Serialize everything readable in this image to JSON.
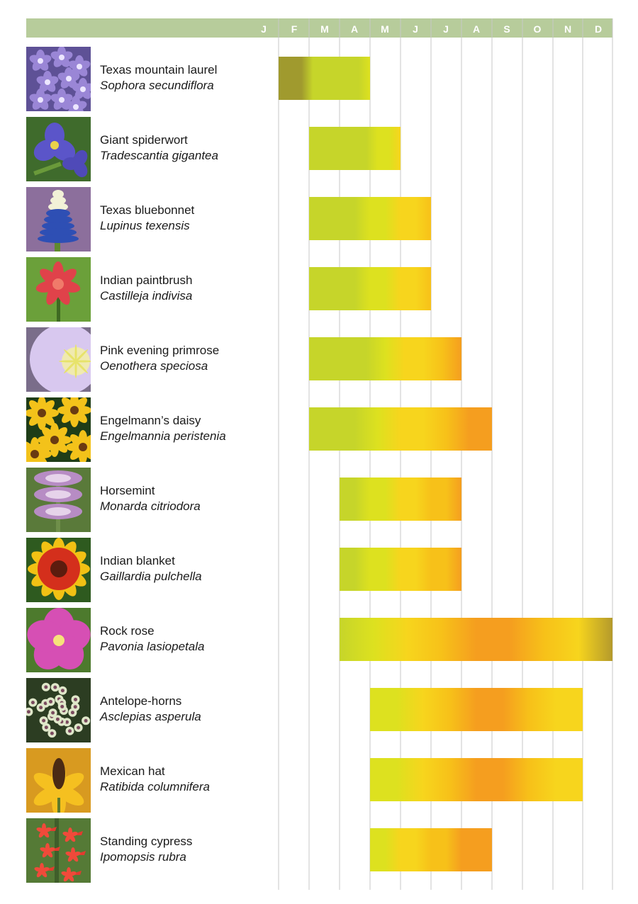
{
  "chart_data": {
    "type": "bar",
    "title": "",
    "x_tick_labels": [
      "J",
      "F",
      "M",
      "A",
      "M",
      "J",
      "J",
      "A",
      "S",
      "O",
      "N",
      "D"
    ],
    "rows": [
      {
        "common": "Texas mountain laurel",
        "scientific": "Sophora secundiflora",
        "start_month": 1,
        "end_month": 3,
        "flower": "purple-cluster"
      },
      {
        "common": "Giant spiderwort",
        "scientific": "Tradescantia gigantea",
        "start_month": 2,
        "end_month": 4,
        "flower": "blue-three-petal"
      },
      {
        "common": "Texas bluebonnet",
        "scientific": "Lupinus texensis",
        "start_month": 2,
        "end_month": 5,
        "flower": "blue-spike"
      },
      {
        "common": "Indian paintbrush",
        "scientific": "Castilleja indivisa",
        "start_month": 2,
        "end_month": 5,
        "flower": "red-bract"
      },
      {
        "common": "Pink evening primrose",
        "scientific": "Oenothera speciosa",
        "start_month": 2,
        "end_month": 6,
        "flower": "pale-pink-cup"
      },
      {
        "common": "Engelmann’s daisy",
        "scientific": "Engelmannia peristenia",
        "start_month": 2,
        "end_month": 7,
        "flower": "yellow-daisy"
      },
      {
        "common": "Horsemint",
        "scientific": "Monarda citriodora",
        "start_month": 3,
        "end_month": 6,
        "flower": "lavender-whorl"
      },
      {
        "common": "Indian blanket",
        "scientific": "Gaillardia pulchella",
        "start_month": 3,
        "end_month": 6,
        "flower": "red-yellow-daisy"
      },
      {
        "common": "Rock rose",
        "scientific": "Pavonia lasiopetala",
        "start_month": 3,
        "end_month": 11,
        "flower": "pink-mallow"
      },
      {
        "common": "Antelope-horns",
        "scientific": "Asclepias asperula",
        "start_month": 4,
        "end_month": 10,
        "flower": "green-white-umbel"
      },
      {
        "common": "Mexican hat",
        "scientific": "Ratibida columnifera",
        "start_month": 4,
        "end_month": 10,
        "flower": "yellow-cone"
      },
      {
        "common": "Standing cypress",
        "scientific": "Ipomopsis rubra",
        "start_month": 4,
        "end_month": 7,
        "flower": "red-tubular"
      }
    ],
    "bar_colors": {
      "cool": "#a09a2e",
      "green": "#c6d52a",
      "lime": "#dde11f",
      "yellow": "#f7d51d",
      "gold": "#f7c119",
      "orange": "#f59e1f",
      "olive": "#b49a2c"
    },
    "header_color": "#b7cc9b",
    "grid_color": "#c7c7c7"
  }
}
